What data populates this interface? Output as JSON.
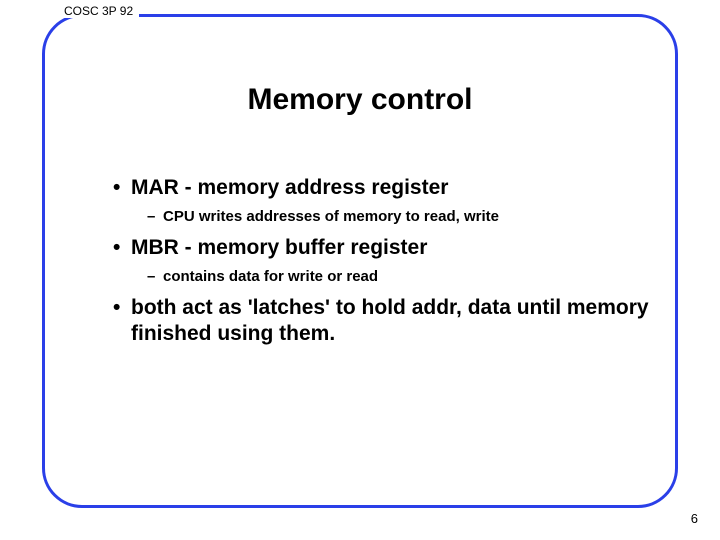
{
  "course_tag": "COSC 3P 92",
  "title": "Memory control",
  "border_color": "#2a3fe8",
  "bullets": [
    {
      "level": 1,
      "text": "MAR - memory address register"
    },
    {
      "level": 2,
      "text": "CPU writes addresses of memory to read, write"
    },
    {
      "level": 1,
      "text": "MBR - memory buffer register"
    },
    {
      "level": 2,
      "text": "contains data for write or read"
    },
    {
      "level": 1,
      "text": "both act as 'latches' to hold addr, data until memory finished using them."
    }
  ],
  "page_number": "6"
}
